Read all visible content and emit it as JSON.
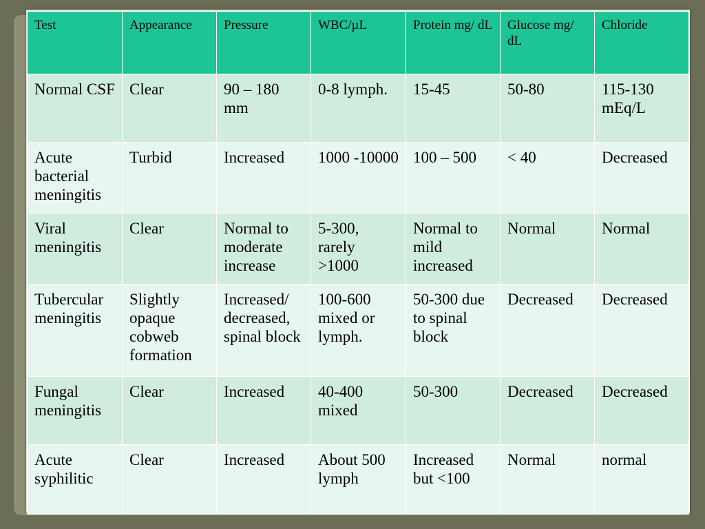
{
  "table": {
    "headers": [
      "Test",
      "Appearance",
      "Pressure",
      "WBC/µL",
      "Protein mg/ dL",
      "Glucose mg/ dL",
      "Chloride"
    ],
    "rows": [
      [
        "Normal CSF",
        "Clear",
        "90 – 180 mm",
        "0-8 lymph.",
        "15-45",
        "50-80",
        "115-130 mEq/L"
      ],
      [
        "Acute bacterial meningitis",
        "Turbid",
        "Increased",
        "1000 -10000",
        "100 – 500",
        "< 40",
        "Decreased"
      ],
      [
        "Viral meningitis",
        "Clear",
        "Normal to moderate increase",
        "5-300, rarely >1000",
        "Normal to mild increased",
        "Normal",
        "Normal"
      ],
      [
        "Tubercular meningitis",
        "Slightly opaque cobweb formation",
        "Increased/ decreased, spinal block",
        "100-600 mixed or lymph.",
        "50-300 due to spinal block",
        "Decreased",
        "Decreased"
      ],
      [
        "Fungal meningitis",
        "Clear",
        "Increased",
        "40-400 mixed",
        "50-300",
        "Decreased",
        "Decreased"
      ],
      [
        "Acute syphilitic",
        "Clear",
        "Increased",
        "About 500 lymph",
        "Increased but <100",
        "Normal",
        "normal"
      ]
    ]
  },
  "colors": {
    "header_bg": "#1dc495",
    "row_odd_bg": "#d0ecdf",
    "row_even_bg": "#e8f6f0",
    "slide_bg": "#6b6d56"
  }
}
